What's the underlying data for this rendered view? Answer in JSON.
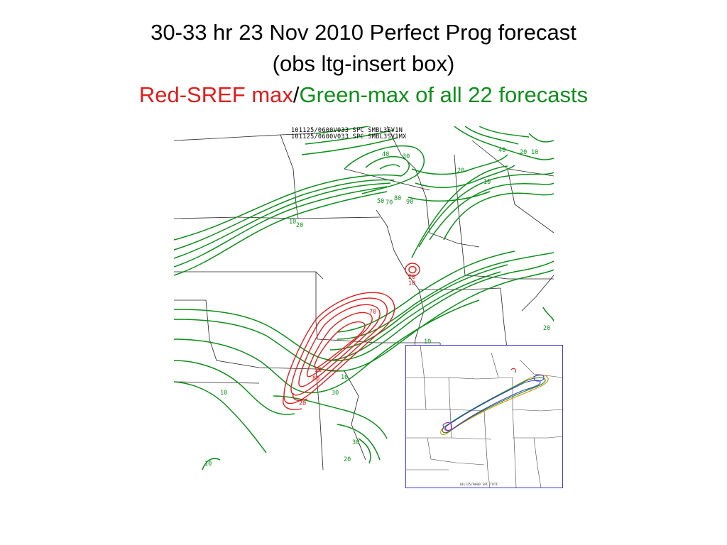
{
  "title": {
    "line1": "30-33 hr 23 Nov 2010 Perfect  Prog forecast",
    "line2": "(obs ltg-insert box)",
    "line3_red": "Red-SREF max",
    "line3_sep": "/",
    "line3_green": "Green-max of all 22 forecasts"
  },
  "map": {
    "header_line1": "101125/0600V033   SPC  SMBL3EV1N",
    "header_line2": "101125/0600V033   SPC  SMBL3SV1MX",
    "colors": {
      "sref_max": "#e21b1b",
      "all22_max": "#0d8f1b",
      "boundaries": "#222222"
    },
    "green_labels": [
      {
        "text": "10"
      },
      {
        "text": "20"
      },
      {
        "text": "40"
      },
      {
        "text": "30"
      },
      {
        "text": "50"
      },
      {
        "text": "70"
      },
      {
        "text": "80"
      },
      {
        "text": "90"
      },
      {
        "text": "40"
      },
      {
        "text": "20"
      },
      {
        "text": "10"
      },
      {
        "text": "20"
      },
      {
        "text": "10"
      },
      {
        "text": "10"
      },
      {
        "text": "20"
      },
      {
        "text": "10"
      },
      {
        "text": "30"
      },
      {
        "text": "10"
      },
      {
        "text": "30"
      },
      {
        "text": "20"
      },
      {
        "text": "10"
      }
    ],
    "red_labels": [
      {
        "text": "20"
      },
      {
        "text": "10"
      },
      {
        "text": "70"
      },
      {
        "text": "50"
      },
      {
        "text": "80"
      },
      {
        "text": "20"
      }
    ]
  },
  "inset": {
    "stamp": "101125/0600   SPC   TOTF",
    "colors": {
      "border": "#3b3bd6",
      "contours": [
        "#e21b1b",
        "#0d8f1b",
        "#3b3bd6",
        "#e08a00",
        "#c020c0"
      ]
    }
  }
}
